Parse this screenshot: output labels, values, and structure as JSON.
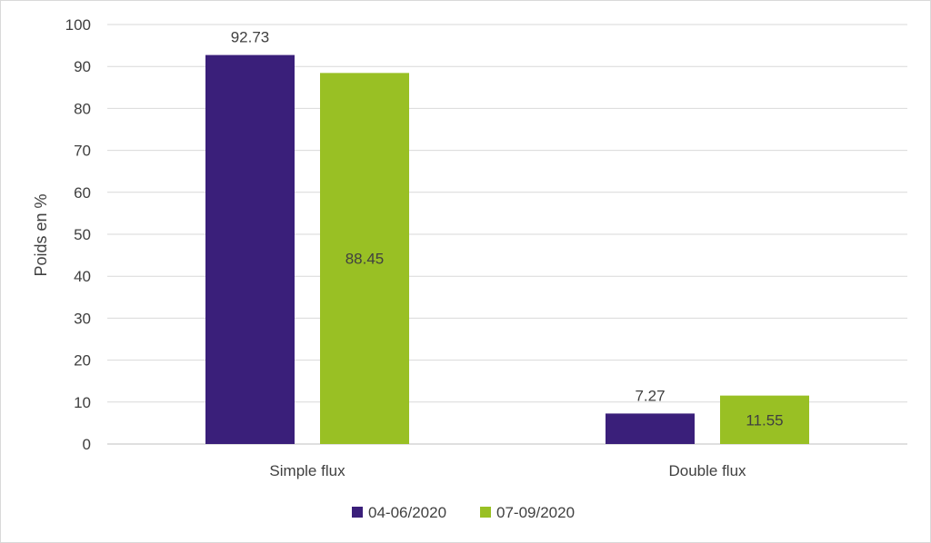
{
  "chart_data": {
    "type": "bar",
    "categories": [
      "Simple flux",
      "Double flux"
    ],
    "series": [
      {
        "name": "04-06/2020",
        "values": [
          92.73,
          7.27
        ],
        "color": "#3a1f7a",
        "labels": [
          "92.73",
          "7.27"
        ]
      },
      {
        "name": "07-09/2020",
        "values": [
          88.45,
          11.55
        ],
        "color": "#99c024",
        "labels": [
          "88.45",
          "11.55"
        ]
      }
    ],
    "title": "",
    "xlabel": "",
    "ylabel": "Poids en %",
    "ylim": [
      0,
      100
    ],
    "yticks": [
      "0",
      "10",
      "20",
      "30",
      "40",
      "50",
      "60",
      "70",
      "80",
      "90",
      "100"
    ],
    "grid": true,
    "legend_position": "bottom"
  }
}
